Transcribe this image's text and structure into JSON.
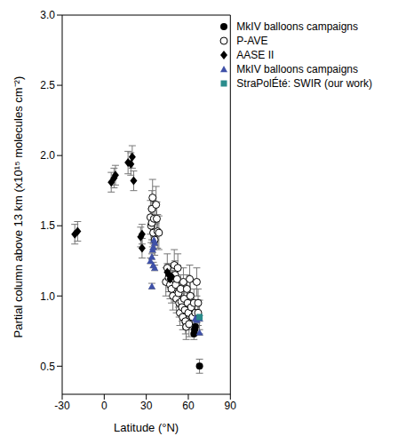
{
  "chart_data": {
    "type": "scatter",
    "x_label": "Latitude (°N)",
    "y_label": "Partial column above 13 km (x10¹⁵ molecules cm⁻²)",
    "xlim": [
      -30,
      90
    ],
    "xticks": [
      -30,
      0,
      30,
      60,
      90
    ],
    "ylim": [
      0.3,
      3.0
    ],
    "yticks": [
      0.5,
      {
        "value": 1.0,
        "label": "1.0"
      },
      1.5,
      {
        "value": 2.0,
        "label": "2.0"
      },
      2.5,
      {
        "value": 3.0,
        "label": "3.0"
      }
    ],
    "legend": "upper right",
    "grid": false,
    "series": [
      {
        "name": "MkIV balloons campaigns",
        "color": "#000000",
        "marker": "circle",
        "x": [
          64,
          64.5,
          65,
          68
        ],
        "values": [
          0.73,
          0.76,
          0.78,
          0.5
        ],
        "errors": [
          0.04,
          0.04,
          0.04,
          0.05
        ]
      },
      {
        "name": "P-AVE",
        "color": "#000000",
        "marker": "open_circle",
        "x": [
          33,
          33.5,
          34,
          34,
          34.5,
          35,
          35.5,
          36,
          37,
          37.5,
          38,
          39,
          44,
          45,
          46,
          47,
          48,
          49,
          50,
          50.5,
          51,
          51.5,
          52,
          52.5,
          53,
          53.5,
          54,
          54.5,
          55,
          55.5,
          56,
          56.5,
          57,
          57.5,
          58,
          58.5,
          59,
          59.5,
          60,
          60.5,
          61,
          61.5,
          62,
          63,
          64,
          65,
          66,
          67,
          67
        ],
        "values": [
          1.56,
          1.5,
          1.52,
          1.62,
          1.7,
          1.45,
          1.55,
          1.4,
          1.65,
          1.55,
          1.46,
          1.45,
          1.1,
          1.2,
          1.13,
          1.08,
          1.05,
          1.0,
          1.22,
          1.15,
          1.08,
          0.98,
          1.12,
          1.2,
          1.02,
          0.95,
          0.88,
          1.05,
          0.96,
          0.92,
          0.85,
          1.1,
          0.98,
          0.9,
          0.82,
          0.78,
          1.05,
          0.95,
          0.88,
          0.8,
          1.12,
          1.0,
          0.92,
          0.85,
          0.95,
          0.88,
          1.1,
          0.95,
          0.88
        ],
        "errors": [
          0.12,
          0.12,
          0.12,
          0.13,
          0.13,
          0.12,
          0.12,
          0.11,
          0.13,
          0.12,
          0.12,
          0.12,
          0.1,
          0.1,
          0.1,
          0.1,
          0.1,
          0.1,
          0.11,
          0.1,
          0.1,
          0.1,
          0.1,
          0.1,
          0.1,
          0.1,
          0.09,
          0.1,
          0.1,
          0.1,
          0.09,
          0.1,
          0.1,
          0.09,
          0.09,
          0.09,
          0.1,
          0.1,
          0.09,
          0.09,
          0.1,
          0.1,
          0.09,
          0.09,
          0.1,
          0.09,
          0.1,
          0.1,
          0.09
        ]
      },
      {
        "name": "AASE II",
        "color": "#000000",
        "marker": "diamond",
        "x": [
          -21,
          -19,
          5,
          7,
          8,
          17,
          19,
          20,
          21,
          26,
          27,
          27,
          45,
          46,
          47,
          48
        ],
        "values": [
          1.44,
          1.46,
          1.81,
          1.84,
          1.86,
          1.95,
          1.94,
          1.99,
          1.82,
          1.42,
          1.44,
          1.34,
          1.17,
          1.15,
          1.12,
          1.14
        ],
        "errors": [
          0.07,
          0.07,
          0.07,
          0.07,
          0.07,
          0.08,
          0.08,
          0.08,
          0.07,
          0.07,
          0.07,
          0.07,
          0.06,
          0.06,
          0.06,
          0.06
        ]
      },
      {
        "name": "MkIV balloons campaigns",
        "color": "#3f51a8",
        "marker": "triangle",
        "x": [
          33,
          34,
          34.5,
          35,
          35.5,
          36,
          35,
          36,
          34,
          65,
          66,
          68,
          68
        ],
        "values": [
          1.25,
          1.28,
          1.33,
          1.35,
          1.4,
          1.38,
          1.22,
          1.2,
          1.07,
          0.84,
          0.83,
          0.84,
          0.74
        ],
        "errors": [
          0.02,
          0.02,
          0.02,
          0.02,
          0.02,
          0.02,
          0.02,
          0.02,
          0.02,
          0.02,
          0.02,
          0.02,
          0.02
        ]
      },
      {
        "name": "StraPolÉté: SWIR (our work)",
        "color": "#2a8c8c",
        "marker": "square",
        "x": [
          68
        ],
        "values": [
          0.85
        ],
        "errors": [
          0.12
        ]
      }
    ]
  }
}
